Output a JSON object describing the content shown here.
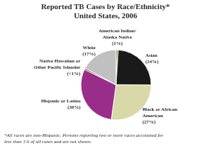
{
  "chart_data": {
    "type": "pie",
    "title": "Reported TB Cases by Race/Ethnicity*",
    "subtitle": "United States, 2006",
    "categories": [
      "American Indian/\nAlaska Native\n(1%)",
      "Asian\n(24%)",
      "Black or African\nAmerican\n(27%)",
      "Hispanic or Latino\n(30%)",
      "Native Hawaiian or\nOther Pacific Islander\n(<1%)",
      "White\n(17%)"
    ],
    "values": [
      1.0,
      24.0,
      27.0,
      30.0,
      0.7,
      17.0
    ],
    "colors": [
      "#8B8B3C",
      "#1A1A1A",
      "#D8D8A8",
      "#9B2D8A",
      "#5A5A1E",
      "#C0C0C0"
    ],
    "annotations": [
      "*All races are non-Hispanic. Persons reporting two or more races accounted for\nless than 1% of all cases and are not shown."
    ]
  }
}
